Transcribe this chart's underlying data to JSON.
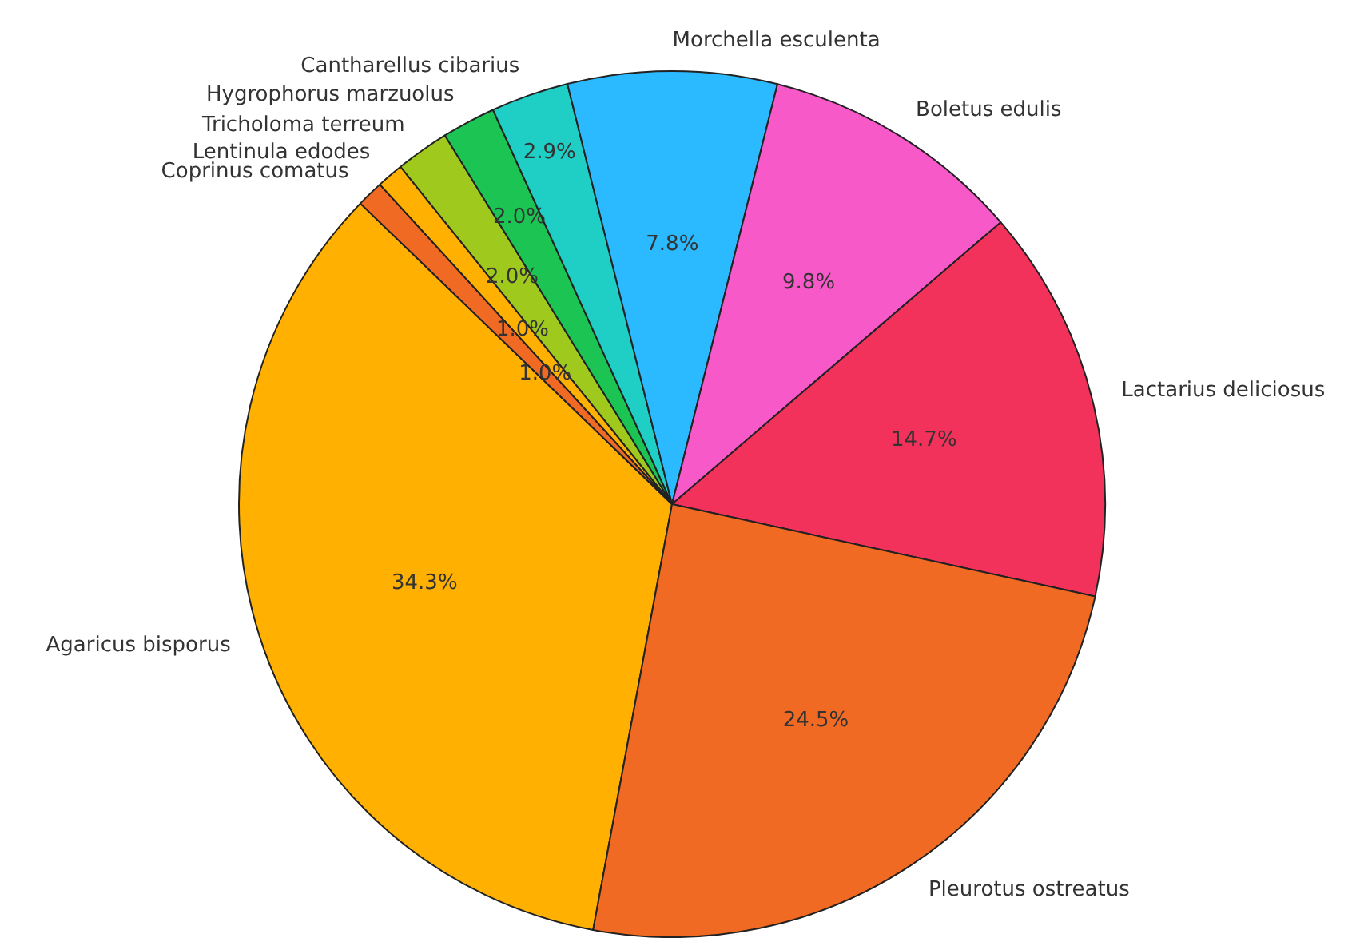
{
  "chart_data": {
    "type": "pie",
    "categories": [
      "Agaricus bisporus",
      "Coprinus comatus",
      "Lentinula edodes",
      "Tricholoma terreum",
      "Hygrophorus marzuolus",
      "Cantharellus cibarius",
      "Morchella esculenta",
      "Boletus edulis",
      "Lactarius deliciosus",
      "Pleurotus ostreatus"
    ],
    "values": [
      34.3,
      1.0,
      1.0,
      2.0,
      2.0,
      2.9,
      7.8,
      9.8,
      14.7,
      24.5
    ],
    "colors": [
      "#ffb000",
      "#f06a23",
      "#ffb000",
      "#a0c91e",
      "#1bc453",
      "#1fcfc5",
      "#2bbaff",
      "#f75ac8",
      "#f2325a",
      "#f06a23"
    ],
    "value_labels": [
      "34.3%",
      "1.0%",
      "1.0%",
      "2.0%",
      "2.0%",
      "2.9%",
      "7.8%",
      "9.8%",
      "14.7%",
      "24.5%"
    ],
    "legend": false
  }
}
